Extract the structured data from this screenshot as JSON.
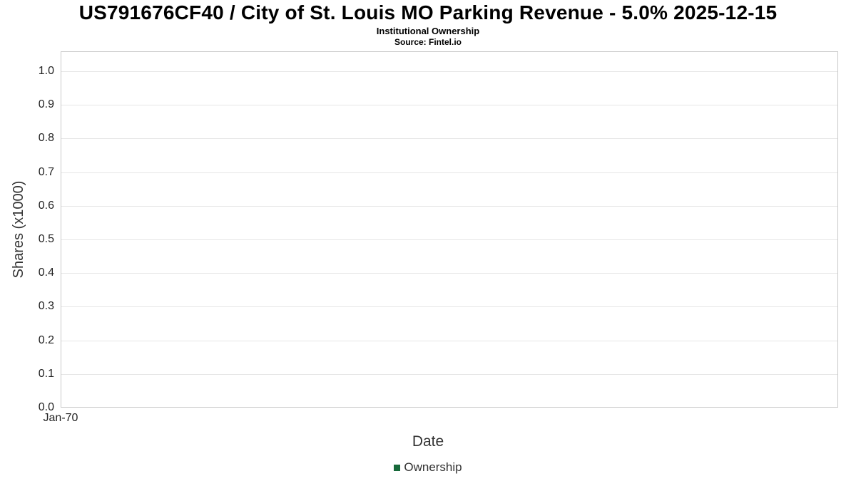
{
  "chart_data": {
    "type": "line",
    "title": "US791676CF40 / City of St. Louis MO Parking Revenue - 5.0% 2025-12-15",
    "subtitle": "Institutional Ownership",
    "source": "Source: Fintel.io",
    "xlabel": "Date",
    "ylabel": "Shares (x1000)",
    "ylim": [
      0.0,
      1.06
    ],
    "yticks": [
      "0.0",
      "0.1",
      "0.2",
      "0.3",
      "0.4",
      "0.5",
      "0.6",
      "0.7",
      "0.8",
      "0.9",
      "1.0"
    ],
    "xticks": [
      "Jan-70"
    ],
    "grid": true,
    "legend_position": "bottom",
    "series": [
      {
        "name": "Ownership",
        "color": "#17693a",
        "x": [],
        "values": []
      }
    ]
  }
}
